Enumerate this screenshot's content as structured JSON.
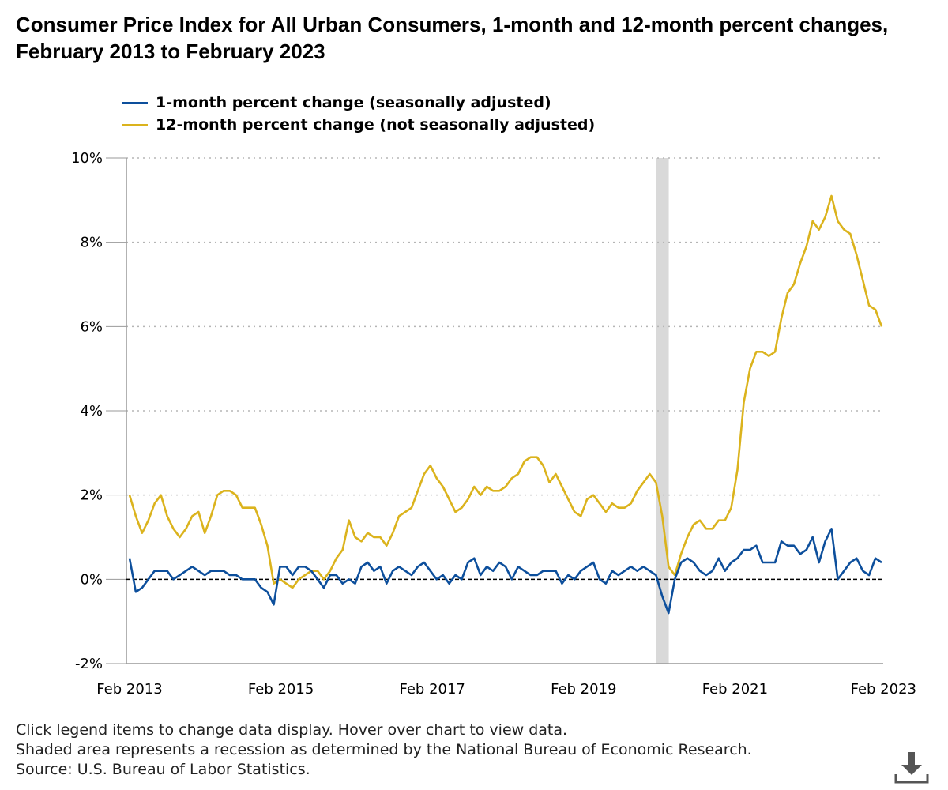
{
  "title": "Consumer Price Index for All Urban Consumers, 1-month and 12-month percent changes, February 2013 to February 2023",
  "legend": [
    {
      "label": "1-month percent change (seasonally adjusted)",
      "color": "#0d4f9c"
    },
    {
      "label": "12-month percent change (not seasonally adjusted)",
      "color": "#dbb31d"
    }
  ],
  "notes": {
    "line1": "Click legend items to change data display. Hover over chart to view data.",
    "line2": "Shaded area represents a recession as determined by the National Bureau of Economic Research.",
    "line3": "Source: U.S. Bureau of Labor Statistics."
  },
  "download_icon": "download-icon",
  "chart_data": {
    "type": "line",
    "ylim": [
      -2,
      10
    ],
    "yticks": [
      -2,
      0,
      2,
      4,
      6,
      8,
      10
    ],
    "ytick_labels": [
      "-2%",
      "0%",
      "2%",
      "4%",
      "6%",
      "8%",
      "10%"
    ],
    "xtick_labels": [
      "Feb 2013",
      "Feb 2015",
      "Feb 2017",
      "Feb 2019",
      "Feb 2021",
      "Feb 2023"
    ],
    "x_start": "2013-02",
    "x_end": "2023-02",
    "grid": true,
    "zero_line": "dashed",
    "recession": {
      "start": "2020-02",
      "end": "2020-04"
    },
    "series": [
      {
        "name": "1-month percent change (seasonally adjusted)",
        "color": "#0d4f9c",
        "values": [
          0.5,
          -0.3,
          -0.2,
          0.0,
          0.2,
          0.2,
          0.2,
          0.0,
          0.1,
          0.2,
          0.3,
          0.2,
          0.1,
          0.2,
          0.2,
          0.2,
          0.1,
          0.1,
          0.0,
          0.0,
          0.0,
          -0.2,
          -0.3,
          -0.6,
          0.3,
          0.3,
          0.1,
          0.3,
          0.3,
          0.2,
          0.0,
          -0.2,
          0.1,
          0.1,
          -0.1,
          0.0,
          -0.1,
          0.3,
          0.4,
          0.2,
          0.3,
          -0.1,
          0.2,
          0.3,
          0.2,
          0.1,
          0.3,
          0.4,
          0.2,
          0.0,
          0.1,
          -0.1,
          0.1,
          0.0,
          0.4,
          0.5,
          0.1,
          0.3,
          0.2,
          0.4,
          0.3,
          0.0,
          0.3,
          0.2,
          0.1,
          0.1,
          0.2,
          0.2,
          0.2,
          -0.1,
          0.1,
          0.0,
          0.2,
          0.3,
          0.4,
          0.0,
          -0.1,
          0.2,
          0.1,
          0.2,
          0.3,
          0.2,
          0.3,
          0.2,
          0.1,
          -0.4,
          -0.8,
          0.0,
          0.4,
          0.5,
          0.4,
          0.2,
          0.1,
          0.2,
          0.5,
          0.2,
          0.4,
          0.5,
          0.7,
          0.7,
          0.8,
          0.4,
          0.4,
          0.4,
          0.9,
          0.8,
          0.8,
          0.6,
          0.7,
          1.0,
          0.4,
          0.9,
          1.2,
          0.0,
          0.2,
          0.4,
          0.5,
          0.2,
          0.1,
          0.5,
          0.4
        ]
      },
      {
        "name": "12-month percent change (not seasonally adjusted)",
        "color": "#dbb31d",
        "values": [
          2.0,
          1.5,
          1.1,
          1.4,
          1.8,
          2.0,
          1.5,
          1.2,
          1.0,
          1.2,
          1.5,
          1.6,
          1.1,
          1.5,
          2.0,
          2.1,
          2.1,
          2.0,
          1.7,
          1.7,
          1.7,
          1.3,
          0.8,
          -0.1,
          0.0,
          -0.1,
          -0.2,
          0.0,
          0.1,
          0.2,
          0.2,
          0.0,
          0.2,
          0.5,
          0.7,
          1.4,
          1.0,
          0.9,
          1.1,
          1.0,
          1.0,
          0.8,
          1.1,
          1.5,
          1.6,
          1.7,
          2.1,
          2.5,
          2.7,
          2.4,
          2.2,
          1.9,
          1.6,
          1.7,
          1.9,
          2.2,
          2.0,
          2.2,
          2.1,
          2.1,
          2.2,
          2.4,
          2.5,
          2.8,
          2.9,
          2.9,
          2.7,
          2.3,
          2.5,
          2.2,
          1.9,
          1.6,
          1.5,
          1.9,
          2.0,
          1.8,
          1.6,
          1.8,
          1.7,
          1.7,
          1.8,
          2.1,
          2.3,
          2.5,
          2.3,
          1.5,
          0.3,
          0.1,
          0.6,
          1.0,
          1.3,
          1.4,
          1.2,
          1.2,
          1.4,
          1.4,
          1.7,
          2.6,
          4.2,
          5.0,
          5.4,
          5.4,
          5.3,
          5.4,
          6.2,
          6.8,
          7.0,
          7.5,
          7.9,
          8.5,
          8.3,
          8.6,
          9.1,
          8.5,
          8.3,
          8.2,
          7.7,
          7.1,
          6.5,
          6.4,
          6.0
        ]
      }
    ]
  }
}
